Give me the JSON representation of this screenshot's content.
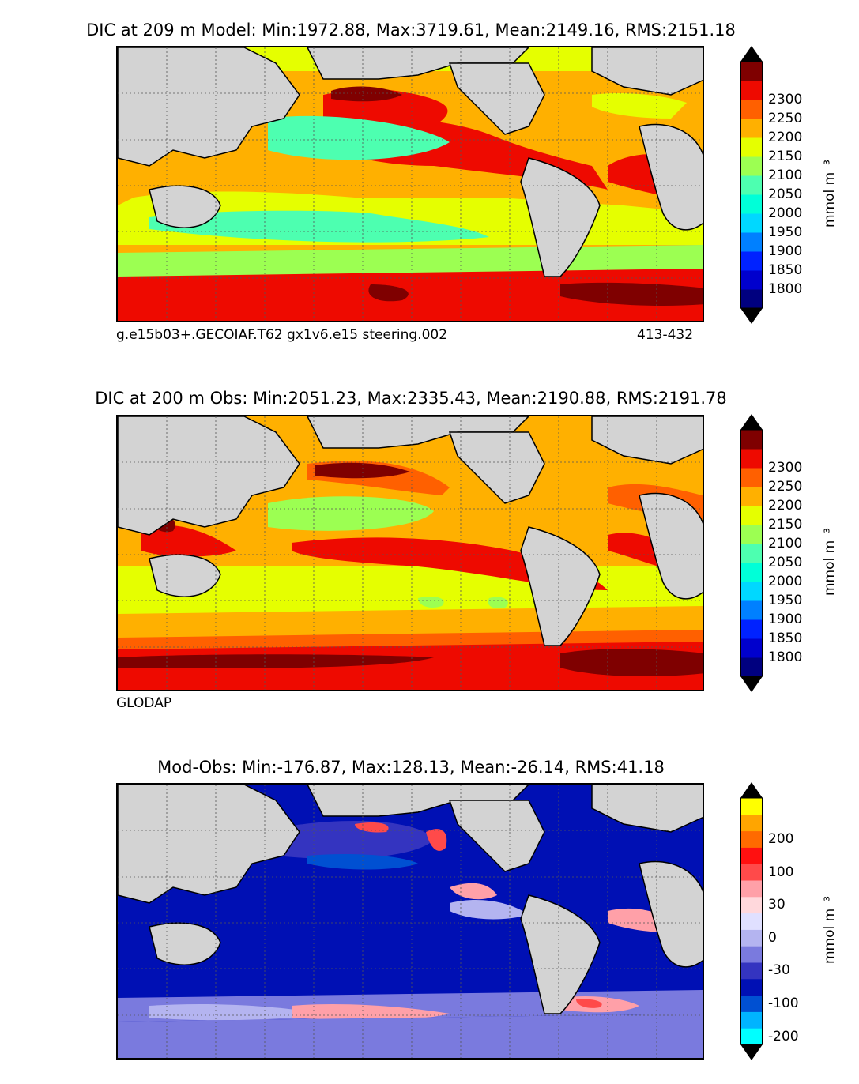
{
  "panels": [
    {
      "title": "DIC at 209 m Model: Min:1972.88, Max:3719.61, Mean:2149.16, RMS:2151.18",
      "caption_left": "g.e15b03+.GECOIAF.T62 gx1v6.e15 steering.002",
      "caption_right": "413-432",
      "unit": "mmol m⁻³",
      "colorbar": {
        "colors": [
          "#00007f",
          "#0000cd",
          "#0022ff",
          "#0080ff",
          "#00d8ff",
          "#00ffd8",
          "#4dffb0",
          "#9cff52",
          "#e5ff00",
          "#ffb000",
          "#ff6000",
          "#ee0a00",
          "#7f0000"
        ],
        "ticks": [
          "1800",
          "1850",
          "1900",
          "1950",
          "2000",
          "2050",
          "2100",
          "2150",
          "2200",
          "2250",
          "2300"
        ],
        "under_color": "#00007f",
        "over_color": "#7f0000"
      }
    },
    {
      "title": "DIC at 200 m Obs: Min:2051.23, Max:2335.43, Mean:2190.88, RMS:2191.78",
      "caption_left": "GLODAP",
      "caption_right": "",
      "unit": "mmol m⁻³",
      "colorbar": {
        "colors": [
          "#00007f",
          "#0000cd",
          "#0022ff",
          "#0080ff",
          "#00d8ff",
          "#00ffd8",
          "#4dffb0",
          "#9cff52",
          "#e5ff00",
          "#ffb000",
          "#ff6000",
          "#ee0a00",
          "#7f0000"
        ],
        "ticks": [
          "1800",
          "1850",
          "1900",
          "1950",
          "2000",
          "2050",
          "2100",
          "2150",
          "2200",
          "2250",
          "2300"
        ],
        "under_color": "#00007f",
        "over_color": "#7f0000"
      }
    },
    {
      "title": "Mod-Obs: Min:-176.87, Max:128.13, Mean:-26.14, RMS:41.18",
      "caption_left": "",
      "caption_right": "",
      "unit": "mmol m⁻³",
      "colorbar": {
        "colors": [
          "#00ffff",
          "#00b4ff",
          "#0050d2",
          "#0010b4",
          "#3434c0",
          "#7a7ade",
          "#b4b4f0",
          "#e0e0ff",
          "#ffd8dc",
          "#ffa0a8",
          "#ff4a4a",
          "#ff1010",
          "#ff6a00",
          "#ffa500",
          "#ffff00"
        ],
        "ticks": [
          "-200",
          "-100",
          "-30",
          "0",
          "30",
          "100",
          "200"
        ],
        "tick_positions": [
          0.5,
          2.5,
          4.5,
          6.5,
          8.5,
          10.5,
          12.5
        ],
        "under_color": "#00ffff",
        "over_color": "#ffff00"
      }
    }
  ]
}
